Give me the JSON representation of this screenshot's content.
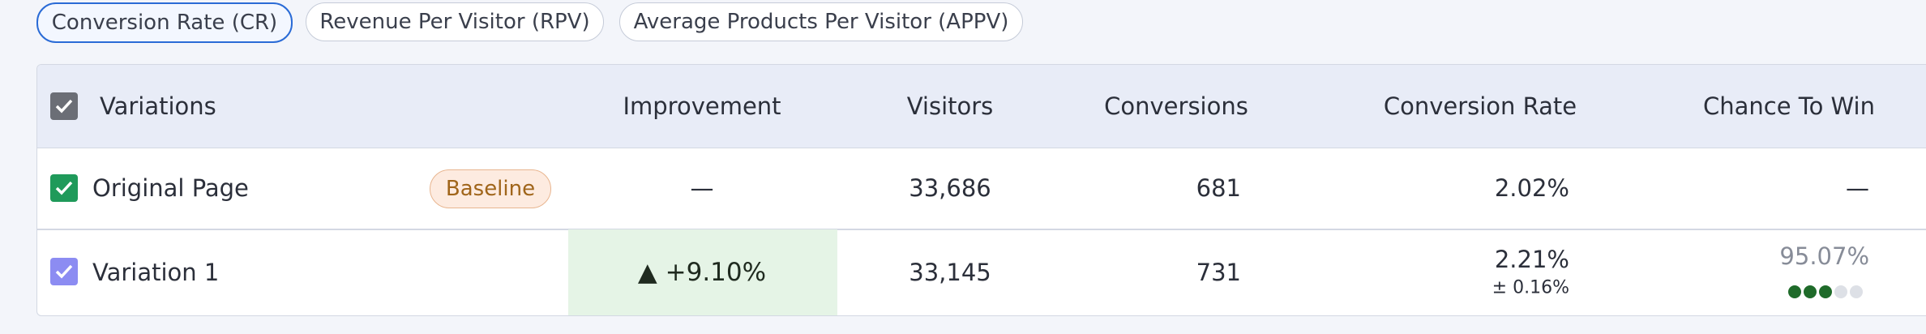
{
  "tabs": [
    "Conversion Rate (CR)",
    "Revenue Per Visitor (RPV)",
    "Average Products Per Visitor (APPV)"
  ],
  "table": {
    "headers": [
      "Variations",
      "Improvement",
      "Visitors",
      "Conversions",
      "Conversion Rate",
      "Chance To Win"
    ],
    "rows": [
      {
        "name": "Original Page",
        "badge": "Baseline",
        "improvement": "—",
        "visitors": "33,686",
        "conversions": "681",
        "conversion_rate": "2.02%",
        "chance_to_win": "—"
      },
      {
        "name": "Variation 1",
        "improvement": "▲ +9.10%",
        "visitors": "33,145",
        "conversions": "731",
        "conversion_rate": "2.21%",
        "conversion_rate_margin": "± 0.16%",
        "chance_to_win": "95.07%"
      }
    ]
  }
}
